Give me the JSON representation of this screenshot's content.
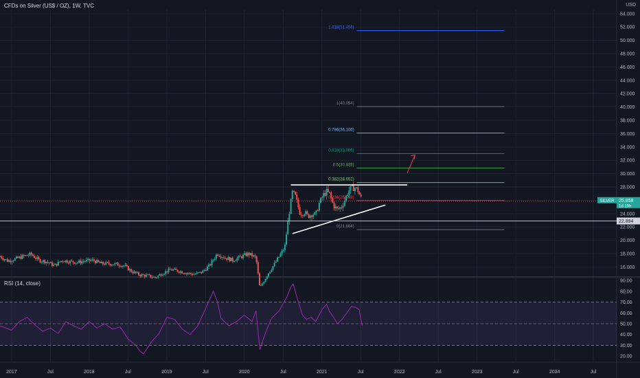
{
  "header": {
    "title": "CFDs on Silver (US$ / OZ), 1W, TVC",
    "currency": "USD"
  },
  "rsi_panel": {
    "title": "RSI (14, close)"
  },
  "colors": {
    "bg": "#131722",
    "up": "#26a69a",
    "down": "#ef5350",
    "rsi": "#9c27b0",
    "grid": "#1f2433"
  },
  "chart_data": [
    {
      "type": "candlestick",
      "title": "CFDs on Silver (US$ / OZ), 1W, TVC",
      "ylim": [
        14.6,
        54.6
      ],
      "y_ticks": [
        "16.000",
        "18.000",
        "20.000",
        "22.000",
        "24.000",
        "26.000",
        "28.000",
        "30.000",
        "32.000",
        "34.000",
        "36.000",
        "38.000",
        "40.000",
        "42.000",
        "44.000",
        "46.000",
        "48.000",
        "50.000",
        "52.000",
        "54.000"
      ],
      "x_ticks": [
        {
          "label": "2017",
          "t": 2017.0
        },
        {
          "label": "Jul",
          "t": 2017.5
        },
        {
          "label": "2018",
          "t": 2018.0
        },
        {
          "label": "Jul",
          "t": 2018.5
        },
        {
          "label": "2019",
          "t": 2019.0
        },
        {
          "label": "Jul",
          "t": 2019.5
        },
        {
          "label": "2020",
          "t": 2020.0
        },
        {
          "label": "Jul",
          "t": 2020.5
        },
        {
          "label": "2021",
          "t": 2021.0
        },
        {
          "label": "Jul",
          "t": 2021.5
        },
        {
          "label": "2022",
          "t": 2022.0
        },
        {
          "label": "Jul",
          "t": 2022.5
        },
        {
          "label": "2023",
          "t": 2023.0
        },
        {
          "label": "Jul",
          "t": 2023.5
        },
        {
          "label": "2024",
          "t": 2024.0
        },
        {
          "label": "Jul",
          "t": 2024.5
        }
      ],
      "price_path": [
        [
          2016.85,
          17.6
        ],
        [
          2016.95,
          16.9
        ],
        [
          2017.05,
          17.2
        ],
        [
          2017.15,
          17.6
        ],
        [
          2017.25,
          17.9
        ],
        [
          2017.35,
          17.0
        ],
        [
          2017.45,
          16.8
        ],
        [
          2017.55,
          16.2
        ],
        [
          2017.65,
          17.0
        ],
        [
          2017.75,
          16.8
        ],
        [
          2017.85,
          16.7
        ],
        [
          2017.95,
          16.9
        ],
        [
          2018.05,
          17.0
        ],
        [
          2018.15,
          16.5
        ],
        [
          2018.25,
          16.5
        ],
        [
          2018.35,
          16.4
        ],
        [
          2018.45,
          16.2
        ],
        [
          2018.55,
          15.3
        ],
        [
          2018.65,
          14.8
        ],
        [
          2018.75,
          14.7
        ],
        [
          2018.85,
          14.4
        ],
        [
          2018.95,
          15.1
        ],
        [
          2019.05,
          15.6
        ],
        [
          2019.15,
          15.4
        ],
        [
          2019.25,
          15.1
        ],
        [
          2019.35,
          14.9
        ],
        [
          2019.45,
          15.2
        ],
        [
          2019.55,
          16.2
        ],
        [
          2019.65,
          18.0
        ],
        [
          2019.75,
          17.4
        ],
        [
          2019.85,
          17.0
        ],
        [
          2019.95,
          17.5
        ],
        [
          2020.05,
          18.0
        ],
        [
          2020.15,
          17.4
        ],
        [
          2020.2,
          12.8
        ],
        [
          2020.3,
          14.9
        ],
        [
          2020.38,
          16.3
        ],
        [
          2020.45,
          17.6
        ],
        [
          2020.52,
          18.9
        ],
        [
          2020.57,
          23.5
        ],
        [
          2020.62,
          27.2
        ],
        [
          2020.66,
          26.5
        ],
        [
          2020.72,
          24.0
        ],
        [
          2020.78,
          24.2
        ],
        [
          2020.82,
          23.6
        ],
        [
          2020.88,
          24.0
        ],
        [
          2020.92,
          23.8
        ],
        [
          2020.96,
          25.4
        ],
        [
          2021.02,
          26.8
        ],
        [
          2021.06,
          27.3
        ],
        [
          2021.1,
          26.9
        ],
        [
          2021.15,
          25.2
        ],
        [
          2021.2,
          24.6
        ],
        [
          2021.25,
          25.0
        ],
        [
          2021.3,
          26.2
        ],
        [
          2021.34,
          27.4
        ],
        [
          2021.38,
          27.8
        ],
        [
          2021.42,
          27.9
        ],
        [
          2021.46,
          27.6
        ],
        [
          2021.5,
          26.4
        ],
        [
          2021.52,
          25.858
        ]
      ],
      "last_price": {
        "symbol": "SILVER",
        "value": "25.858",
        "countdown": "1d 19h"
      },
      "marker_price": {
        "value": "22.894",
        "y": 22.894
      },
      "fibonacci": [
        {
          "label": "0(21.604)",
          "y": 21.604,
          "color": "#787b86"
        },
        {
          "label": "0.236(25.958)",
          "y": 25.958,
          "color": "#f23645"
        },
        {
          "label": "0.382(28.652)",
          "y": 28.652,
          "color": "#81c784"
        },
        {
          "label": "0.5(30.829)",
          "y": 30.829,
          "color": "#4caf50"
        },
        {
          "label": "0.618(33.006)",
          "y": 33.006,
          "color": "#089981"
        },
        {
          "label": "0.786(36.106)",
          "y": 36.106,
          "color": "#64b5f6"
        },
        {
          "label": "1(40.054)",
          "y": 40.054,
          "color": "#787b86"
        },
        {
          "label": "1.618(51.456)",
          "y": 51.456,
          "color": "#2962ff"
        }
      ],
      "fib_t_range": [
        2021.45,
        2023.35
      ],
      "trendlines": [
        {
          "name": "resistance",
          "t1": 2020.6,
          "y1": 28.3,
          "t2": 2022.1,
          "y2": 28.3,
          "color": "#ffffff"
        },
        {
          "name": "support",
          "t1": 2020.62,
          "y1": 21.0,
          "t2": 2021.82,
          "y2": 25.3,
          "color": "#ffffff"
        }
      ],
      "arrow": {
        "t1": 2022.1,
        "y1": 30.1,
        "t2": 2022.2,
        "y2": 32.8,
        "color": "#f23645"
      }
    },
    {
      "type": "line",
      "title": "RSI (14, close)",
      "ylim": [
        15,
        92
      ],
      "y_ticks": [
        "20.00",
        "30.00",
        "40.00",
        "50.00",
        "60.00",
        "70.00",
        "80.00",
        "90.00"
      ],
      "bands": [
        30,
        50,
        70
      ],
      "series": [
        {
          "points": [
            [
              2016.85,
              48
            ],
            [
              2017.0,
              44
            ],
            [
              2017.1,
              52
            ],
            [
              2017.2,
              56
            ],
            [
              2017.3,
              49
            ],
            [
              2017.4,
              43
            ],
            [
              2017.5,
              46
            ],
            [
              2017.6,
              41
            ],
            [
              2017.7,
              52
            ],
            [
              2017.8,
              48
            ],
            [
              2017.9,
              45
            ],
            [
              2018.0,
              52
            ],
            [
              2018.1,
              46
            ],
            [
              2018.2,
              50
            ],
            [
              2018.3,
              45
            ],
            [
              2018.4,
              47
            ],
            [
              2018.5,
              36
            ],
            [
              2018.6,
              30
            ],
            [
              2018.65,
              25
            ],
            [
              2018.7,
              22
            ],
            [
              2018.8,
              33
            ],
            [
              2018.9,
              41
            ],
            [
              2019.0,
              56
            ],
            [
              2019.1,
              54
            ],
            [
              2019.2,
              45
            ],
            [
              2019.3,
              40
            ],
            [
              2019.4,
              48
            ],
            [
              2019.5,
              64
            ],
            [
              2019.6,
              80
            ],
            [
              2019.65,
              71
            ],
            [
              2019.7,
              55
            ],
            [
              2019.8,
              48
            ],
            [
              2019.9,
              52
            ],
            [
              2020.0,
              58
            ],
            [
              2020.1,
              52
            ],
            [
              2020.15,
              62
            ],
            [
              2020.2,
              26
            ],
            [
              2020.28,
              43
            ],
            [
              2020.35,
              55
            ],
            [
              2020.45,
              62
            ],
            [
              2020.55,
              75
            ],
            [
              2020.6,
              84
            ],
            [
              2020.63,
              87
            ],
            [
              2020.68,
              74
            ],
            [
              2020.75,
              58
            ],
            [
              2020.8,
              54
            ],
            [
              2020.86,
              56
            ],
            [
              2020.92,
              52
            ],
            [
              2021.0,
              63
            ],
            [
              2021.06,
              68
            ],
            [
              2021.1,
              61
            ],
            [
              2021.15,
              56
            ],
            [
              2021.2,
              50
            ],
            [
              2021.26,
              54
            ],
            [
              2021.32,
              60
            ],
            [
              2021.38,
              66
            ],
            [
              2021.44,
              65
            ],
            [
              2021.48,
              63
            ],
            [
              2021.52,
              48
            ]
          ]
        }
      ]
    }
  ]
}
